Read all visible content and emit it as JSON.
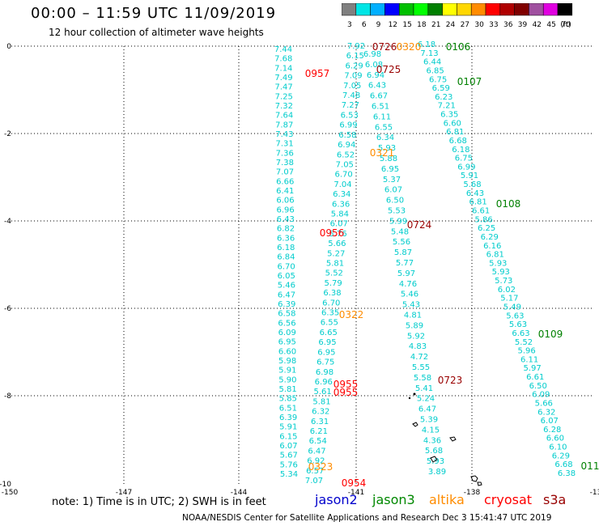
{
  "header": {
    "title": "00:00 – 11:59 UTC 11/09/2019",
    "subtitle": "12 hour collection of altimeter wave heights"
  },
  "legend": {
    "unit": "(ft)",
    "bins": [
      {
        "label": "3",
        "color": "#808080"
      },
      {
        "label": "6",
        "color": "#00e5e5"
      },
      {
        "label": "9",
        "color": "#00b0ff"
      },
      {
        "label": "12",
        "color": "#0000ff"
      },
      {
        "label": "15",
        "color": "#00c000"
      },
      {
        "label": "18",
        "color": "#00ff00"
      },
      {
        "label": "21",
        "color": "#008000"
      },
      {
        "label": "24",
        "color": "#ffff00"
      },
      {
        "label": "27",
        "color": "#ffd700"
      },
      {
        "label": "30",
        "color": "#ff8c00"
      },
      {
        "label": "33",
        "color": "#ff0000"
      },
      {
        "label": "36",
        "color": "#b00000"
      },
      {
        "label": "39",
        "color": "#800000"
      },
      {
        "label": "42",
        "color": "#a050a0"
      },
      {
        "label": "45",
        "color": "#e000e0"
      },
      {
        "label": "70",
        "color": "#000000"
      }
    ]
  },
  "axes": {
    "lat_labels": [
      "0",
      "-2",
      "-4",
      "-6",
      "-8",
      "-10"
    ],
    "lon_labels": [
      "-150",
      "-147",
      "-144",
      "-141",
      "-138",
      "-13"
    ]
  },
  "tracks": [
    {
      "name": "track-a",
      "values": [
        "7.44",
        "7.68",
        "7.14",
        "7.49",
        "7.47",
        "7.25",
        "7.32",
        "7.64",
        "7.87",
        "7.43",
        "7.31",
        "7.36",
        "7.38",
        "7.07",
        "6.66",
        "6.41",
        "6.06",
        "6.96",
        "6.43",
        "6.82",
        "6.36",
        "6.18",
        "6.84",
        "6.70",
        "6.05",
        "5.46",
        "6.47",
        "6.39",
        "6.58",
        "6.56",
        "6.09",
        "6.95",
        "6.60",
        "5.98",
        "5.91",
        "5.90",
        "5.81",
        "5.85",
        "6.51",
        "6.39",
        "5.91",
        "6.15",
        "6.07",
        "5.67",
        "5.76",
        "5.34"
      ]
    },
    {
      "name": "track-b",
      "values": [
        "7.92",
        "6.15",
        "6.29",
        "7.09",
        "7.05",
        "7.48",
        "7.27",
        "6.53",
        "6.99",
        "6.58",
        "6.94",
        "6.52",
        "7.05",
        "6.70",
        "7.04",
        "6.34",
        "6.36",
        "5.84",
        "6.07",
        "5.76",
        "5.66",
        "5.27",
        "5.81",
        "5.52",
        "5.79",
        "6.38",
        "6.70",
        "6.35",
        "6.55",
        "6.65",
        "6.95",
        "6.95",
        "6.75",
        "6.98",
        "6.96",
        "5.61",
        "5.81",
        "6.32",
        "6.31",
        "6.21",
        "6.54",
        "6.47",
        "6.92",
        "6.57",
        "7.07"
      ]
    },
    {
      "name": "track-c",
      "values": [
        "6.98",
        "6.08",
        "6.94",
        "6.43",
        "6.67",
        "6.51",
        "6.11",
        "6.55",
        "6.34",
        "5.93",
        "5.88",
        "6.95",
        "5.37",
        "6.07",
        "6.50",
        "5.53",
        "5.99",
        "5.48",
        "5.56",
        "5.87",
        "5.77",
        "5.97",
        "4.76",
        "5.46",
        "5.43",
        "4.81",
        "5.89",
        "5.92",
        "4.83",
        "4.72",
        "5.55",
        "5.58",
        "5.41",
        "5.24",
        "6.47",
        "5.39",
        "4.15",
        "4.36",
        "5.68",
        "5.93",
        "3.89"
      ]
    },
    {
      "name": "track-d",
      "values": [
        "6.18",
        "7.13",
        "6.44",
        "6.85",
        "6.75",
        "6.59",
        "6.23",
        "7.21",
        "6.35",
        "6.60",
        "6.81",
        "6.68",
        "6.18",
        "6.75",
        "6.99",
        "5.91",
        "5.68",
        "6.43",
        "6.81",
        "6.61",
        "5.86",
        "6.25",
        "6.29",
        "6.16",
        "6.81",
        "5.93",
        "5.93",
        "5.73",
        "6.02",
        "5.17",
        "5.49",
        "5.63",
        "5.63",
        "6.63",
        "5.52",
        "5.96",
        "6.11",
        "5.97",
        "6.61",
        "6.50",
        "6.09",
        "5.66",
        "6.32",
        "6.07",
        "6.28",
        "6.60",
        "6.10",
        "6.29",
        "6.68",
        "6.38"
      ]
    }
  ],
  "times": [
    {
      "label": "0726",
      "color": "#990000"
    },
    {
      "label": "0320",
      "color": "#ff8c00"
    },
    {
      "label": "0106",
      "color": "#008000"
    },
    {
      "label": "0725",
      "color": "#990000"
    },
    {
      "label": "0957",
      "color": "#ff0000"
    },
    {
      "label": "0107",
      "color": "#008000"
    },
    {
      "label": "0321",
      "color": "#ff8c00"
    },
    {
      "label": "0108",
      "color": "#008000"
    },
    {
      "label": "0724",
      "color": "#990000"
    },
    {
      "label": "0956",
      "color": "#ff0000"
    },
    {
      "label": "0322",
      "color": "#ff8c00"
    },
    {
      "label": "0109",
      "color": "#008000"
    },
    {
      "label": "0723",
      "color": "#990000"
    },
    {
      "label": "0955",
      "color": "#ff0000"
    },
    {
      "label": "0955",
      "color": "#ff0000"
    },
    {
      "label": "0323",
      "color": "#ff8c00"
    },
    {
      "label": "0954",
      "color": "#ff0000"
    },
    {
      "label": "011",
      "color": "#008000"
    }
  ],
  "footer": {
    "note": "note: 1) Time is in UTC; 2) SWH is in feet",
    "satellites": [
      {
        "label": "jason2",
        "color": "#0000cc"
      },
      {
        "label": "jason3",
        "color": "#008800"
      },
      {
        "label": "altika",
        "color": "#ff8c00"
      },
      {
        "label": "cryosat",
        "color": "#ff0000"
      },
      {
        "label": "s3a",
        "color": "#990000"
      }
    ],
    "credit": "NOAA/NESDIS Center for Satellite Applications and Research    Dec  3 15:41:47 UTC 2019"
  }
}
